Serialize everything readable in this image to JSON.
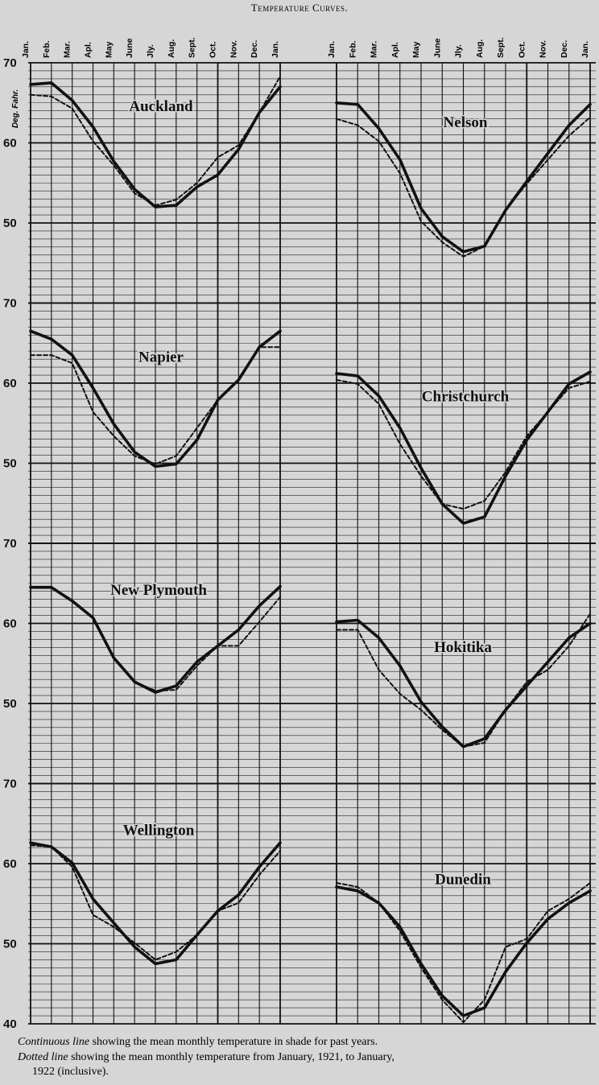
{
  "chart_data": {
    "type": "line",
    "title": "Temperature Curves.",
    "ylabel": "Deg. Fahr.",
    "categories": [
      "Jan.",
      "Feb.",
      "Mar.",
      "Apl.",
      "May",
      "June",
      "Jly.",
      "Aug.",
      "Sept.",
      "Oct.",
      "Nov.",
      "Dec.",
      "Jan."
    ],
    "ylim": [
      40,
      70
    ],
    "yticks": [
      40,
      50,
      60,
      70
    ],
    "grid": true,
    "color": "#111111",
    "legend": [
      {
        "name": "Continuous line",
        "description": "showing the mean monthly temperature in shade for past years."
      },
      {
        "name": "Dotted line",
        "description": "showing the mean monthly temperature from January, 1921, to January,",
        "description2": "1922 (inclusive)."
      }
    ],
    "panels": [
      {
        "title": "Auckland",
        "series": [
          {
            "style": "solid",
            "values": [
              67.3,
              67.5,
              65.3,
              62,
              57.7,
              54.2,
              52,
              52.2,
              54.5,
              56,
              59.2,
              63.8,
              67
            ]
          },
          {
            "style": "dotted",
            "values": [
              66,
              65.8,
              64.3,
              60.2,
              57.2,
              53.7,
              52.2,
              52.9,
              55,
              58.2,
              59.7,
              63.8,
              68.3
            ]
          }
        ]
      },
      {
        "title": "Nelson",
        "series": [
          {
            "style": "solid",
            "values": [
              65,
              64.8,
              61.8,
              57.9,
              51.8,
              48.3,
              46.4,
              47.1,
              51.6,
              55.2,
              58.7,
              62.2,
              64.8
            ]
          },
          {
            "style": "dotted",
            "values": [
              63,
              62.2,
              60.2,
              56.2,
              50.2,
              47.6,
              45.8,
              47.1,
              51.6,
              54.9,
              57.9,
              60.9,
              63.2
            ]
          }
        ]
      },
      {
        "title": "Napier",
        "series": [
          {
            "style": "solid",
            "values": [
              66.5,
              65.5,
              63.5,
              59.4,
              54.9,
              51.4,
              49.6,
              49.9,
              52.9,
              57.9,
              60.4,
              64.5,
              66.5
            ]
          },
          {
            "style": "dotted",
            "values": [
              63.5,
              63.5,
              62.5,
              56.4,
              53.4,
              50.9,
              49.9,
              50.9,
              54.4,
              57.9,
              60.4,
              64.5,
              64.5
            ]
          }
        ]
      },
      {
        "title": "Christchurch",
        "series": [
          {
            "style": "solid",
            "values": [
              61.2,
              60.9,
              58.4,
              54.4,
              49.4,
              44.9,
              42.5,
              43.3,
              48.4,
              52.9,
              56.4,
              59.9,
              61.4
            ]
          },
          {
            "style": "dotted",
            "values": [
              60.4,
              59.9,
              57.4,
              52.4,
              48.4,
              44.9,
              44.3,
              45.3,
              48.9,
              53.4,
              56.4,
              59.4,
              60.2
            ]
          }
        ]
      },
      {
        "title": "New Plymouth",
        "series": [
          {
            "style": "solid",
            "values": [
              64.5,
              64.5,
              62.8,
              60.7,
              55.7,
              52.7,
              51.4,
              52.2,
              55.2,
              57.2,
              59.2,
              62.2,
              64.6
            ]
          },
          {
            "style": "dotted",
            "values": [
              64.5,
              64.5,
              62.8,
              60.7,
              55.7,
              52.7,
              51.6,
              51.7,
              54.7,
              57.2,
              57.2,
              60.2,
              63.3
            ]
          }
        ]
      },
      {
        "title": "Hokitika",
        "series": [
          {
            "style": "solid",
            "values": [
              60.2,
              60.4,
              58.2,
              54.7,
              50.2,
              47.1,
              44.6,
              45.6,
              49.2,
              52.2,
              55.2,
              58.2,
              60
            ]
          },
          {
            "style": "dotted",
            "values": [
              59.2,
              59.2,
              54.2,
              51.2,
              49.2,
              46.7,
              44.6,
              45.1,
              49.2,
              52.7,
              54.2,
              57.2,
              61.2
            ]
          }
        ]
      },
      {
        "title": "Wellington",
        "series": [
          {
            "style": "solid",
            "values": [
              62.6,
              62.1,
              60.1,
              55.6,
              52.6,
              49.6,
              47.5,
              48,
              51.1,
              54.1,
              56.1,
              59.6,
              62.6
            ]
          },
          {
            "style": "dotted",
            "values": [
              62.3,
              62.1,
              59.6,
              53.6,
              52.1,
              50.1,
              48,
              49,
              51.1,
              54.1,
              55.1,
              58.6,
              61.6
            ]
          }
        ]
      },
      {
        "title": "Dunedin",
        "series": [
          {
            "style": "solid",
            "values": [
              57.1,
              56.6,
              55.1,
              52.1,
              47.5,
              43.5,
              41,
              42,
              46.5,
              50.1,
              53.1,
              55.1,
              56.6
            ]
          },
          {
            "style": "dotted",
            "values": [
              57.6,
              57.1,
              55.1,
              51.6,
              47,
              43,
              40.2,
              43,
              49.6,
              50.6,
              54.1,
              55.6,
              57.6
            ]
          }
        ]
      }
    ]
  }
}
